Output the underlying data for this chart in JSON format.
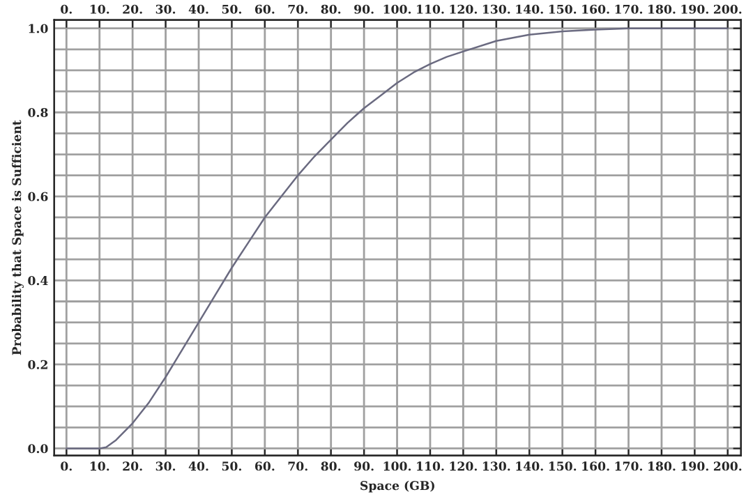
{
  "chart_data": {
    "type": "line",
    "xlabel": "Space (GB)",
    "ylabel": "Probability that Space is Sufficient",
    "x": [
      0,
      10,
      12,
      15,
      20,
      25,
      30,
      35,
      40,
      45,
      50,
      55,
      60,
      65,
      70,
      75,
      80,
      85,
      90,
      95,
      100,
      105,
      110,
      115,
      120,
      130,
      140,
      150,
      160,
      170,
      180,
      190,
      200
    ],
    "series": [
      {
        "color": "#6a6a80",
        "values": [
          0,
          0,
          0.003,
          0.02,
          0.06,
          0.11,
          0.17,
          0.235,
          0.3,
          0.365,
          0.43,
          0.49,
          0.55,
          0.6,
          0.65,
          0.695,
          0.735,
          0.775,
          0.81,
          0.84,
          0.87,
          0.895,
          0.915,
          0.932,
          0.945,
          0.97,
          0.985,
          0.993,
          0.997,
          1.0,
          1.0,
          1.0,
          1.0
        ]
      }
    ],
    "xlim": [
      -3.7,
      204
    ],
    "ylim": [
      -0.017,
      1.02
    ],
    "xticks": [
      {
        "value": 0,
        "label": "0."
      },
      {
        "value": 10,
        "label": "10."
      },
      {
        "value": 20,
        "label": "20."
      },
      {
        "value": 30,
        "label": "30."
      },
      {
        "value": 40,
        "label": "40."
      },
      {
        "value": 50,
        "label": "50."
      },
      {
        "value": 60,
        "label": "60."
      },
      {
        "value": 70,
        "label": "70."
      },
      {
        "value": 80,
        "label": "80."
      },
      {
        "value": 90,
        "label": "90."
      },
      {
        "value": 100,
        "label": "100."
      },
      {
        "value": 110,
        "label": "110."
      },
      {
        "value": 120,
        "label": "120."
      },
      {
        "value": 130,
        "label": "130."
      },
      {
        "value": 140,
        "label": "140."
      },
      {
        "value": 150,
        "label": "150."
      },
      {
        "value": 160,
        "label": "160."
      },
      {
        "value": 170,
        "label": "170."
      },
      {
        "value": 180,
        "label": "180."
      },
      {
        "value": 190,
        "label": "190."
      },
      {
        "value": 200,
        "label": "200."
      }
    ],
    "x2lim": [
      -3.7,
      204
    ],
    "x2ticks": [
      {
        "value": 0,
        "label": "0."
      },
      {
        "value": 10,
        "label": "10."
      },
      {
        "value": 20,
        "label": "20."
      },
      {
        "value": 30,
        "label": "30."
      },
      {
        "value": 40,
        "label": "40."
      },
      {
        "value": 50,
        "label": "50."
      },
      {
        "value": 60,
        "label": "60."
      },
      {
        "value": 70,
        "label": "70."
      },
      {
        "value": 80,
        "label": "80."
      },
      {
        "value": 90,
        "label": "90."
      },
      {
        "value": 100,
        "label": "100."
      },
      {
        "value": 110,
        "label": "110."
      },
      {
        "value": 120,
        "label": "120."
      },
      {
        "value": 130,
        "label": "130."
      },
      {
        "value": 140,
        "label": "140."
      },
      {
        "value": 150,
        "label": "150."
      },
      {
        "value": 160,
        "label": "160."
      },
      {
        "value": 170,
        "label": "170."
      },
      {
        "value": 180,
        "label": "180."
      },
      {
        "value": 190,
        "label": "190."
      },
      {
        "value": 200,
        "label": "200."
      }
    ],
    "yticks": [
      {
        "value": 0,
        "label": "0.0"
      },
      {
        "value": 0.05,
        "label": null
      },
      {
        "value": 0.1,
        "label": null
      },
      {
        "value": 0.15,
        "label": null
      },
      {
        "value": 0.2,
        "label": "0.2"
      },
      {
        "value": 0.25,
        "label": null
      },
      {
        "value": 0.3,
        "label": null
      },
      {
        "value": 0.35,
        "label": null
      },
      {
        "value": 0.4,
        "label": "0.4"
      },
      {
        "value": 0.45,
        "label": null
      },
      {
        "value": 0.5,
        "label": null
      },
      {
        "value": 0.55,
        "label": null
      },
      {
        "value": 0.6,
        "label": "0.6"
      },
      {
        "value": 0.65,
        "label": null
      },
      {
        "value": 0.7,
        "label": null
      },
      {
        "value": 0.75,
        "label": null
      },
      {
        "value": 0.8,
        "label": "0.8"
      },
      {
        "value": 0.85,
        "label": null
      },
      {
        "value": 0.9,
        "label": null
      },
      {
        "value": 0.95,
        "label": null
      },
      {
        "value": 1.0,
        "label": "1.0"
      }
    ],
    "grid": true,
    "marker": "none",
    "line_style": "solid"
  }
}
